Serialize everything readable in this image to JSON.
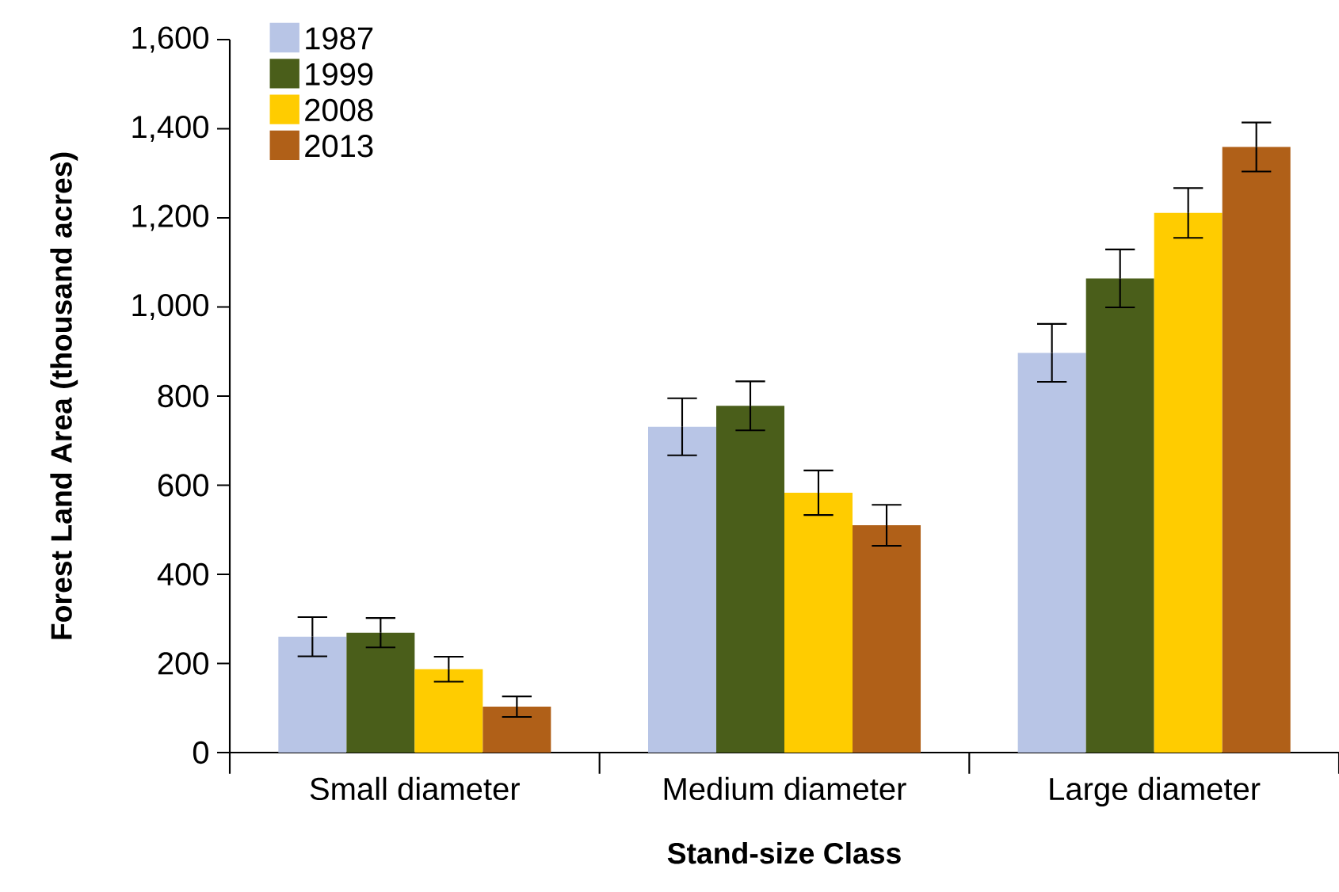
{
  "chart_data": {
    "type": "bar",
    "xlabel": "Stand-size Class",
    "ylabel": "Forest Land Area (thousand acres)",
    "categories": [
      "Small diameter",
      "Medium diameter",
      "Large diameter"
    ],
    "series": [
      {
        "name": "1987",
        "color": "#b8c5e6",
        "values": [
          260,
          731,
          897
        ],
        "errors": [
          44,
          64,
          65
        ]
      },
      {
        "name": "1999",
        "color": "#4a5e1a",
        "values": [
          269,
          778,
          1064
        ],
        "errors": [
          33,
          55,
          65
        ]
      },
      {
        "name": "2008",
        "color": "#ffcc00",
        "values": [
          187,
          583,
          1211
        ],
        "errors": [
          28,
          50,
          56
        ]
      },
      {
        "name": "2013",
        "color": "#b06018",
        "values": [
          103,
          510,
          1359
        ],
        "errors": [
          23,
          46,
          55
        ]
      }
    ],
    "ylim": [
      0,
      1600
    ],
    "yticks": [
      0,
      200,
      400,
      600,
      800,
      {
        "value": 1000,
        "label": "1,000"
      },
      {
        "value": 1200,
        "label": "1,200"
      },
      {
        "value": 1400,
        "label": "1,400"
      },
      {
        "value": 1600,
        "label": "1,600"
      }
    ],
    "legend": "top left"
  }
}
